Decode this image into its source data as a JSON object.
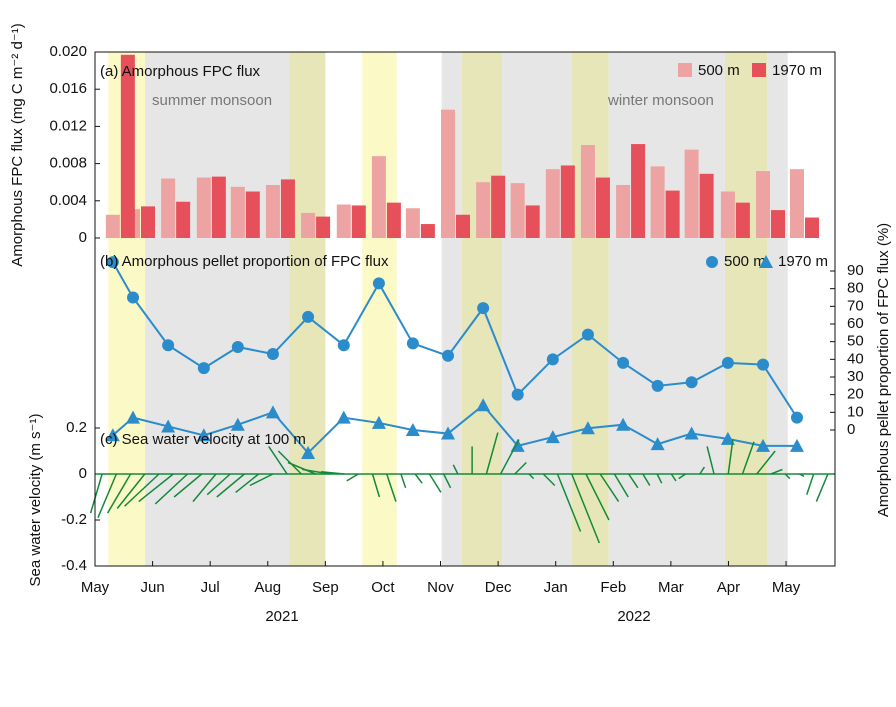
{
  "chart_data": [
    {
      "type": "bar",
      "title": "(a) Amorphous FPC flux",
      "ylabel": "Amorphous FPC flux (mg C m⁻² d⁻¹)",
      "annotations": [
        "summer monsoon",
        "winter monsoon"
      ],
      "xlim": [
        0,
        12.85
      ],
      "x": [
        0.31,
        0.66,
        1.27,
        1.89,
        2.48,
        3.09,
        3.7,
        4.32,
        4.93,
        5.52,
        6.13,
        6.74,
        7.34,
        7.95,
        8.56,
        9.17,
        9.77,
        10.36,
        10.99,
        11.6,
        12.19
      ],
      "ylim": [
        0,
        0.02
      ],
      "yticks": [
        0,
        0.004,
        0.008,
        0.012,
        0.016,
        {
          "value": 0.02,
          "label": "0.020"
        }
      ],
      "bands": [
        {
          "from": 0.23,
          "to": 0.87,
          "color": "#fbf9c6"
        },
        {
          "from": 0.87,
          "to": 3.37,
          "color": "#e6e6e6"
        },
        {
          "from": 3.37,
          "to": 4.0,
          "color": "#e7e6b8"
        },
        {
          "from": 4.64,
          "to": 5.24,
          "color": "#fbf9c6"
        },
        {
          "from": 6.02,
          "to": 6.37,
          "color": "#e6e6e6"
        },
        {
          "from": 6.37,
          "to": 7.07,
          "color": "#e7e6b8"
        },
        {
          "from": 7.07,
          "to": 8.28,
          "color": "#e6e6e6"
        },
        {
          "from": 8.28,
          "to": 8.92,
          "color": "#e7e6b8"
        },
        {
          "from": 8.92,
          "to": 10.94,
          "color": "#e6e6e6"
        },
        {
          "from": 10.94,
          "to": 11.67,
          "color": "#e7e6b8"
        },
        {
          "from": 11.67,
          "to": 12.03,
          "color": "#e6e6e6"
        }
      ],
      "series": [
        {
          "name": "500 m",
          "color": "#eea3a3",
          "values": [
            0.0025,
            0.0031,
            0.0064,
            0.0065,
            0.0055,
            0.0057,
            0.0027,
            0.0036,
            0.0088,
            0.0032,
            0.0138,
            0.006,
            0.0059,
            0.0074,
            0.01,
            0.0057,
            0.0077,
            0.0095,
            0.005,
            0.0072,
            0.0074
          ]
        },
        {
          "name": "1970 m",
          "color": "#e5505a",
          "values": [
            0.0197,
            0.0034,
            0.0039,
            0.0066,
            0.005,
            0.0063,
            0.0023,
            0.0035,
            0.0038,
            0.0015,
            0.0025,
            0.0067,
            0.0035,
            0.0078,
            0.0065,
            0.0101,
            0.0051,
            0.0069,
            0.0038,
            0.003,
            0.0022
          ]
        }
      ]
    },
    {
      "type": "line",
      "title": "(b) Amorphous pellet proportion of FPC flux",
      "ylabel": "Amorphous pellet proportion of FPC flux (%)",
      "xlim": [
        0,
        12.85
      ],
      "x": [
        0.31,
        0.66,
        1.27,
        1.89,
        2.48,
        3.09,
        3.7,
        4.32,
        4.93,
        5.52,
        6.13,
        6.74,
        7.34,
        7.95,
        8.56,
        9.17,
        9.77,
        10.36,
        10.99,
        11.6,
        12.19
      ],
      "ylim": [
        -15,
        100
      ],
      "yticks": [
        0,
        10,
        20,
        30,
        40,
        50,
        60,
        70,
        80,
        90
      ],
      "series": [
        {
          "name": "500 m",
          "color": "#2b8ccb",
          "marker": "circle",
          "values": [
            95,
            75,
            48,
            35,
            47,
            43,
            64,
            48,
            83,
            49,
            42,
            69,
            20,
            40,
            54,
            38,
            25,
            27,
            38,
            37,
            7
          ]
        },
        {
          "name": "1970 m",
          "color": "#2b8ccb",
          "marker": "triangle",
          "values": [
            -3,
            7,
            2,
            -3,
            3,
            10,
            -13,
            7,
            4,
            0,
            -2,
            14,
            -9,
            -4,
            1,
            3,
            -8,
            -2,
            -5,
            -9,
            -9
          ]
        }
      ]
    },
    {
      "type": "quiver",
      "title": "(c) Sea water velocity at 100 m",
      "ylabel": "Sea water velocity (m s⁻¹)",
      "color": "#138a3a",
      "xlim": [
        0,
        12.85
      ],
      "xticks": [
        {
          "value": 0,
          "label": "May"
        },
        {
          "value": 1,
          "label": "Jun"
        },
        {
          "value": 2,
          "label": "Jul"
        },
        {
          "value": 3,
          "label": "Aug"
        },
        {
          "value": 4,
          "label": "Sep"
        },
        {
          "value": 5,
          "label": "Oct"
        },
        {
          "value": 6,
          "label": "Nov"
        },
        {
          "value": 7,
          "label": "Dec"
        },
        {
          "value": 8,
          "label": "Jan"
        },
        {
          "value": 9,
          "label": "Feb"
        },
        {
          "value": 10,
          "label": "Mar"
        },
        {
          "value": 11,
          "label": "Apr"
        },
        {
          "value": 12,
          "label": "May"
        }
      ],
      "years": [
        "2021",
        "2022"
      ],
      "ylim": [
        -0.4,
        0.2
      ],
      "yticks": [
        0.2,
        0,
        -0.2,
        -0.4
      ],
      "u": [
        -0.05,
        -0.08,
        -0.1,
        -0.12,
        -0.15,
        -0.15,
        -0.14,
        -0.12,
        -0.1,
        -0.1,
        -0.12,
        -0.1,
        -0.1,
        -0.08,
        -0.1,
        -0.12,
        -0.12,
        -0.1,
        -0.05,
        0.03,
        0.04,
        0.02,
        0.03,
        0.05,
        0.03,
        -0.02,
        0,
        0.05,
        0.08,
        0.05,
        0.02,
        0.05,
        0.1,
        0.12,
        0.1,
        0.08,
        0.06,
        0.04,
        0.03,
        0.02,
        0.02,
        -0.03,
        0.02,
        -0.03,
        0.02,
        0.05,
        0.08,
        0.05,
        0.02,
        0.02,
        -0.03,
        -0.05
      ],
      "v": [
        -0.17,
        -0.19,
        -0.17,
        -0.15,
        -0.14,
        -0.12,
        -0.13,
        -0.1,
        -0.12,
        -0.09,
        -0.1,
        -0.08,
        -0.05,
        0.12,
        0.1,
        0.05,
        0.02,
        0.01,
        -0.03,
        -0.1,
        -0.12,
        -0.06,
        -0.04,
        -0.08,
        -0.06,
        0.04,
        0.12,
        0.18,
        0.15,
        0.05,
        -0.02,
        -0.05,
        -0.25,
        -0.3,
        -0.2,
        -0.12,
        -0.1,
        -0.06,
        -0.05,
        -0.04,
        -0.03,
        -0.02,
        0.03,
        0.12,
        0.15,
        0.14,
        0.1,
        0.02,
        -0.02,
        -0.01,
        -0.09,
        -0.12
      ]
    }
  ]
}
